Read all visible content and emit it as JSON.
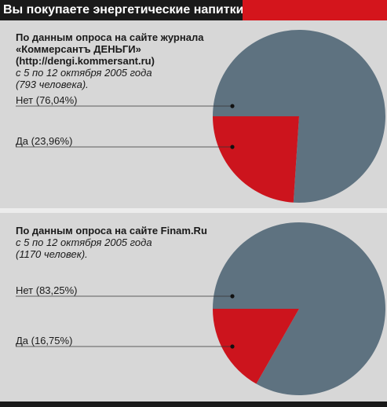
{
  "header": {
    "title": "Вы покупаете энергетические напитки?"
  },
  "colors": {
    "no": "#5e7280",
    "yes": "#cc141d",
    "accent": "#d4151c",
    "leader": "#333333"
  },
  "chart_data": [
    {
      "type": "pie",
      "source_bold": [
        "По данным опроса на сайте журнала",
        "«Коммерсантъ ДЕНЬГИ»",
        "(http://dengi.kommersant.ru)"
      ],
      "source_italic": [
        "с 5 по 12 октября 2005 года",
        "(793 человека)."
      ],
      "slices": [
        {
          "label": "Нет (76,04%)",
          "value": 76.04
        },
        {
          "label": "Да (23,96%)",
          "value": 23.96
        }
      ]
    },
    {
      "type": "pie",
      "source_bold": [
        "По данным опроса на сайте Finam.Ru"
      ],
      "source_italic": [
        "с 5 по 12 октября 2005 года",
        "(1170 человек)."
      ],
      "slices": [
        {
          "label": "Нет (83,25%)",
          "value": 83.25
        },
        {
          "label": "Да (16,75%)",
          "value": 16.75
        }
      ]
    }
  ]
}
